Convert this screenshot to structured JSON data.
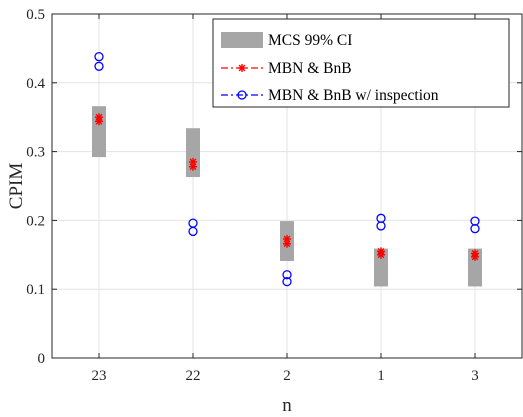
{
  "chart_data": {
    "type": "scatter",
    "xlabel": "n",
    "ylabel": "CPIM",
    "categories": [
      "23",
      "22",
      "2",
      "1",
      "3"
    ],
    "ylim": [
      0,
      0.5
    ],
    "yticks": [
      "0",
      "0.1",
      "0.2",
      "0.3",
      "0.4",
      "0.5"
    ],
    "grid": true,
    "legend_position": "top-right",
    "series": [
      {
        "name": "MCS 99% CI",
        "kind": "interval",
        "color": "#a6a6a6",
        "low": [
          0.292,
          0.263,
          0.141,
          0.104,
          0.104
        ],
        "high": [
          0.366,
          0.334,
          0.199,
          0.159,
          0.159
        ]
      },
      {
        "name": "MBN & BnB",
        "kind": "point-pair",
        "color": "#ff0000",
        "marker": "asterisk",
        "line": "dash-dot",
        "values": [
          [
            0.344,
            0.35
          ],
          [
            0.278,
            0.285
          ],
          [
            0.166,
            0.173
          ],
          [
            0.15,
            0.155
          ],
          [
            0.147,
            0.152
          ]
        ]
      },
      {
        "name": "MBN & BnB w/ inspection",
        "kind": "point-pair",
        "color": "#0000ff",
        "marker": "circle",
        "line": "dash-dot",
        "values": [
          [
            0.424,
            0.438
          ],
          [
            0.184,
            0.196
          ],
          [
            0.111,
            0.121
          ],
          [
            0.192,
            0.203
          ],
          [
            0.188,
            0.199
          ]
        ]
      }
    ]
  }
}
